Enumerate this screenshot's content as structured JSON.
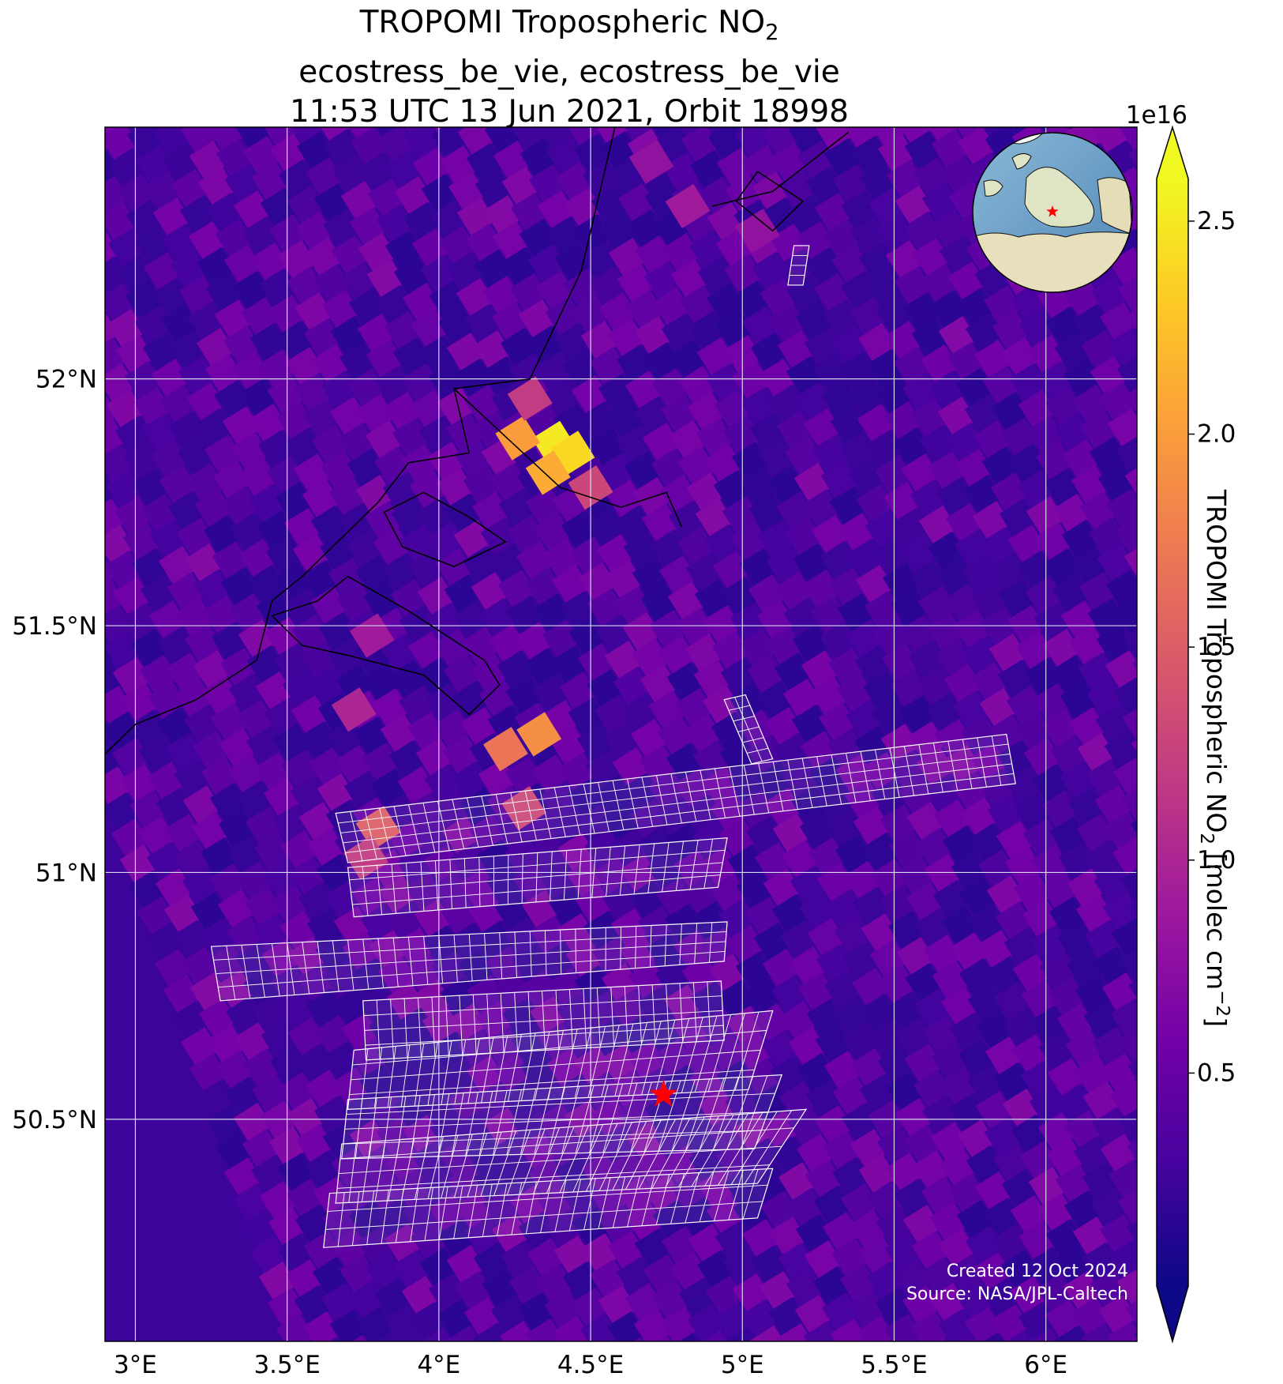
{
  "title": {
    "line1_main": "TROPOMI Tropospheric NO",
    "line1_sub": "2",
    "line2": "ecostress_be_vie, ecostress_be_vie",
    "line3": "11:53 UTC 13 Jun 2021, Orbit 18998"
  },
  "axes": {
    "x_ticks": [
      "3°E",
      "3.5°E",
      "4°E",
      "4.5°E",
      "5°E",
      "5.5°E",
      "6°E"
    ],
    "x_tick_values": [
      3.0,
      3.5,
      4.0,
      4.5,
      5.0,
      5.5,
      6.0
    ],
    "y_ticks": [
      "52°N",
      "51.5°N",
      "51°N",
      "50.5°N"
    ],
    "y_tick_values": [
      52.0,
      51.5,
      51.0,
      50.5
    ],
    "lon_range": [
      2.9,
      6.3
    ],
    "lat_range": [
      50.05,
      52.51
    ],
    "grid": true
  },
  "colorbar": {
    "exponent_label": "1e16",
    "ticks": [
      "0.5",
      "1.0",
      "1.5",
      "2.0",
      "2.5"
    ],
    "tick_values": [
      0.5,
      1.0,
      1.5,
      2.0,
      2.5
    ],
    "range": [
      0.0,
      2.6
    ],
    "extend": "both",
    "colormap": "plasma",
    "label_main": "TROPOMI Tropospheric NO",
    "label_sub": "2",
    "label_unit_pre": " [molec cm",
    "label_sup": "−2",
    "label_unit_post": "]"
  },
  "credits": {
    "created": "Created 12 Oct 2024",
    "source": "Source: NASA/JPL-Caltech"
  },
  "site_marker": {
    "lon": 4.74,
    "lat": 50.55,
    "color": "#ff0000"
  },
  "colors": {
    "plasma": [
      "#0d0887",
      "#46039f",
      "#7201a8",
      "#9c179e",
      "#bd3786",
      "#d8576b",
      "#ed7953",
      "#fb9f3a",
      "#fdca26",
      "#f0f921"
    ],
    "grid_line": "#d8d8ee",
    "footprint_line": "#ffffff",
    "coastline": "#000000"
  },
  "no2_hotspots": [
    {
      "lon": 4.38,
      "lat": 51.87,
      "value": 2.5
    },
    {
      "lon": 4.44,
      "lat": 51.85,
      "value": 2.4
    },
    {
      "lon": 4.26,
      "lat": 51.88,
      "value": 2.0
    },
    {
      "lon": 4.36,
      "lat": 51.81,
      "value": 2.1
    },
    {
      "lon": 4.5,
      "lat": 51.78,
      "value": 1.3
    },
    {
      "lon": 4.3,
      "lat": 51.96,
      "value": 1.2
    },
    {
      "lon": 4.22,
      "lat": 51.25,
      "value": 1.7
    },
    {
      "lon": 4.33,
      "lat": 51.28,
      "value": 1.9
    },
    {
      "lon": 4.28,
      "lat": 51.13,
      "value": 1.3
    },
    {
      "lon": 3.8,
      "lat": 51.09,
      "value": 1.5
    },
    {
      "lon": 3.76,
      "lat": 51.03,
      "value": 1.2
    },
    {
      "lon": 3.72,
      "lat": 51.33,
      "value": 1.0
    },
    {
      "lon": 3.78,
      "lat": 51.48,
      "value": 0.9
    },
    {
      "lon": 4.82,
      "lat": 52.35,
      "value": 0.9
    },
    {
      "lon": 5.05,
      "lat": 52.3,
      "value": 0.8
    },
    {
      "lon": 4.7,
      "lat": 52.44,
      "value": 0.8
    }
  ],
  "coastline": [
    [
      [
        4.58,
        52.51
      ],
      [
        4.47,
        52.22
      ],
      [
        4.3,
        52.0
      ],
      [
        4.05,
        51.98
      ],
      [
        4.1,
        51.85
      ],
      [
        3.9,
        51.83
      ],
      [
        3.8,
        51.75
      ],
      [
        3.55,
        51.6
      ],
      [
        3.45,
        51.55
      ],
      [
        3.4,
        51.43
      ],
      [
        3.2,
        51.35
      ],
      [
        3.0,
        51.3
      ],
      [
        2.9,
        51.24
      ]
    ],
    [
      [
        4.05,
        51.98
      ],
      [
        4.4,
        51.78
      ],
      [
        4.6,
        51.74
      ],
      [
        4.75,
        51.77
      ],
      [
        4.8,
        51.7
      ]
    ],
    [
      [
        4.9,
        52.35
      ],
      [
        5.1,
        52.38
      ],
      [
        5.35,
        52.5
      ]
    ],
    [
      [
        3.7,
        51.6
      ],
      [
        3.9,
        51.53
      ],
      [
        4.15,
        51.43
      ],
      [
        4.2,
        51.38
      ],
      [
        4.1,
        51.32
      ],
      [
        3.95,
        51.4
      ],
      [
        3.7,
        51.44
      ],
      [
        3.55,
        51.46
      ],
      [
        3.45,
        51.52
      ],
      [
        3.6,
        51.55
      ],
      [
        3.7,
        51.6
      ]
    ],
    [
      [
        3.95,
        51.77
      ],
      [
        4.1,
        51.72
      ],
      [
        4.22,
        51.67
      ],
      [
        4.05,
        51.62
      ],
      [
        3.88,
        51.66
      ],
      [
        3.82,
        51.73
      ],
      [
        3.95,
        51.77
      ]
    ],
    [
      [
        5.05,
        52.42
      ],
      [
        5.2,
        52.36
      ],
      [
        5.1,
        52.3
      ],
      [
        4.98,
        52.36
      ],
      [
        5.05,
        52.42
      ]
    ]
  ],
  "footprint_swaths": [
    {
      "corners": [
        [
          3.66,
          51.12
        ],
        [
          5.87,
          51.28
        ],
        [
          5.9,
          51.18
        ],
        [
          3.7,
          51.02
        ]
      ],
      "cols": 46,
      "rows": 5
    },
    {
      "corners": [
        [
          3.7,
          51.01
        ],
        [
          4.95,
          51.07
        ],
        [
          4.92,
          50.97
        ],
        [
          3.72,
          50.91
        ]
      ],
      "cols": 26,
      "rows": 4
    },
    {
      "corners": [
        [
          3.25,
          50.85
        ],
        [
          4.95,
          50.9
        ],
        [
          4.94,
          50.82
        ],
        [
          3.28,
          50.74
        ]
      ],
      "cols": 34,
      "rows": 4
    },
    {
      "corners": [
        [
          3.75,
          50.74
        ],
        [
          4.93,
          50.78
        ],
        [
          4.94,
          50.66
        ],
        [
          3.76,
          50.62
        ]
      ],
      "cols": 26,
      "rows": 4
    },
    {
      "corners": [
        [
          3.72,
          50.64
        ],
        [
          5.1,
          50.72
        ],
        [
          5.02,
          50.56
        ],
        [
          3.7,
          50.52
        ]
      ],
      "cols": 30,
      "rows": 4
    },
    {
      "corners": [
        [
          3.7,
          50.54
        ],
        [
          5.13,
          50.59
        ],
        [
          5.04,
          50.44
        ],
        [
          3.68,
          50.42
        ]
      ],
      "cols": 30,
      "rows": 4
    },
    {
      "corners": [
        [
          3.68,
          50.45
        ],
        [
          5.21,
          50.52
        ],
        [
          5.05,
          50.37
        ],
        [
          3.66,
          50.33
        ]
      ],
      "cols": 32,
      "rows": 4
    },
    {
      "corners": [
        [
          3.64,
          50.35
        ],
        [
          5.1,
          50.4
        ],
        [
          5.05,
          50.3
        ],
        [
          3.62,
          50.24
        ]
      ],
      "cols": 30,
      "rows": 3
    },
    {
      "corners": [
        [
          4.94,
          51.35
        ],
        [
          5.01,
          51.36
        ],
        [
          5.1,
          51.23
        ],
        [
          5.03,
          51.22
        ]
      ],
      "cols": 2,
      "rows": 6
    },
    {
      "corners": [
        [
          5.17,
          52.27
        ],
        [
          5.22,
          52.27
        ],
        [
          5.2,
          52.19
        ],
        [
          5.15,
          52.19
        ]
      ],
      "cols": 1,
      "rows": 4
    }
  ]
}
